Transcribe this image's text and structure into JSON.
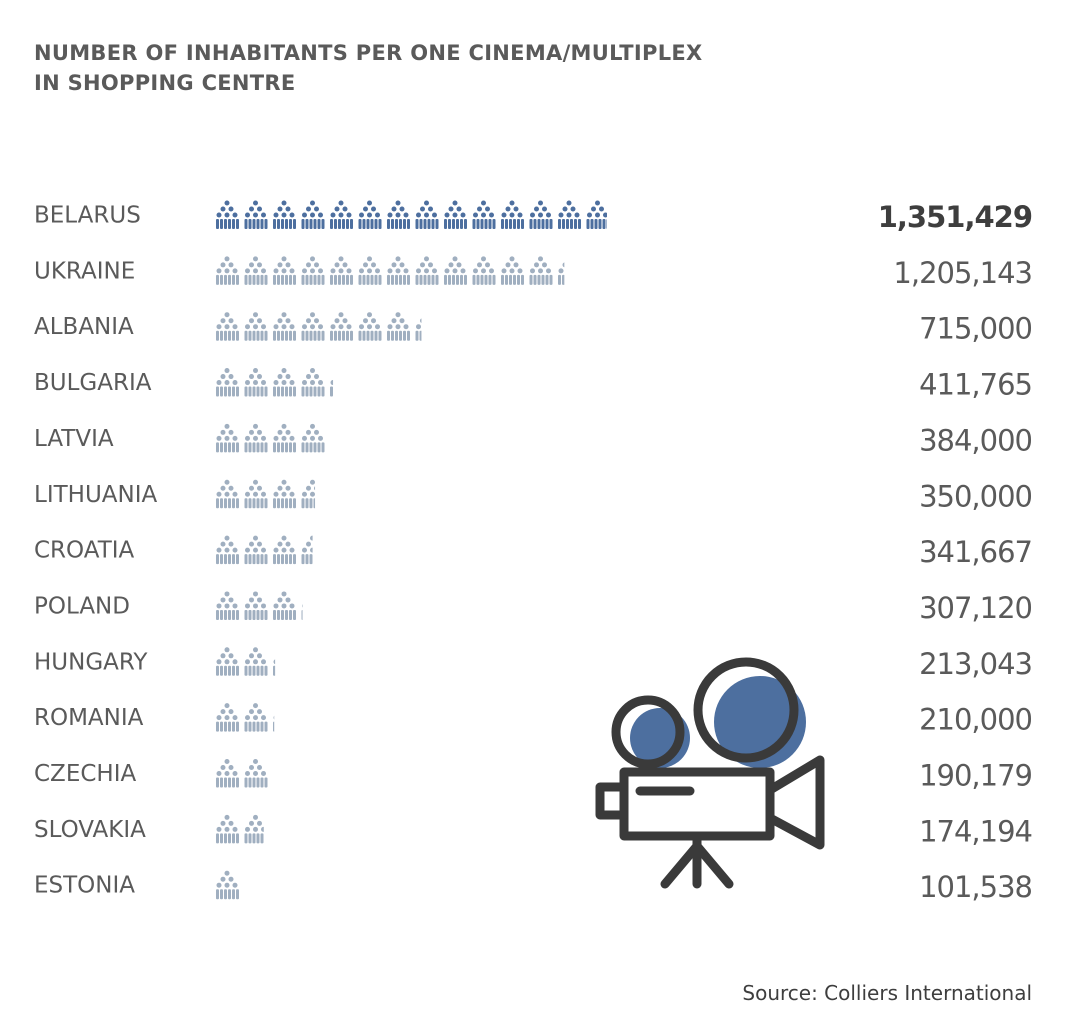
{
  "chart_data": {
    "type": "pictograph",
    "title": "NUMBER OF INHABITANTS PER ONE CINEMA/MULTIPLEX IN SHOPPING CENTRE",
    "categories": [
      "BELARUS",
      "UKRAINE",
      "ALBANIA",
      "BULGARIA",
      "LATVIA",
      "LITHUANIA",
      "CROATIA",
      "POLAND",
      "HUNGARY",
      "ROMANIA",
      "CZECHIA",
      "SLOVAKIA",
      "ESTONIA"
    ],
    "values": [
      1351429,
      1205143,
      715000,
      411765,
      384000,
      350000,
      341667,
      307120,
      213043,
      210000,
      190179,
      174194,
      101538
    ],
    "value_labels": [
      "1,351,429",
      "1,205,143",
      "715,000",
      "411,765",
      "384,000",
      "350,000",
      "341,667",
      "307,120",
      "213,043",
      "210,000",
      "190,179",
      "174,194",
      "101,538"
    ],
    "colors": [
      "#4d6f9f",
      "#a0afc0",
      "#a0afc0",
      "#a0afc0",
      "#a0afc0",
      "#a0afc0",
      "#a0afc0",
      "#a0afc0",
      "#a0afc0",
      "#a0afc0",
      "#a0afc0",
      "#a0afc0",
      "#a0afc0"
    ],
    "source": "Source: Colliers International"
  }
}
